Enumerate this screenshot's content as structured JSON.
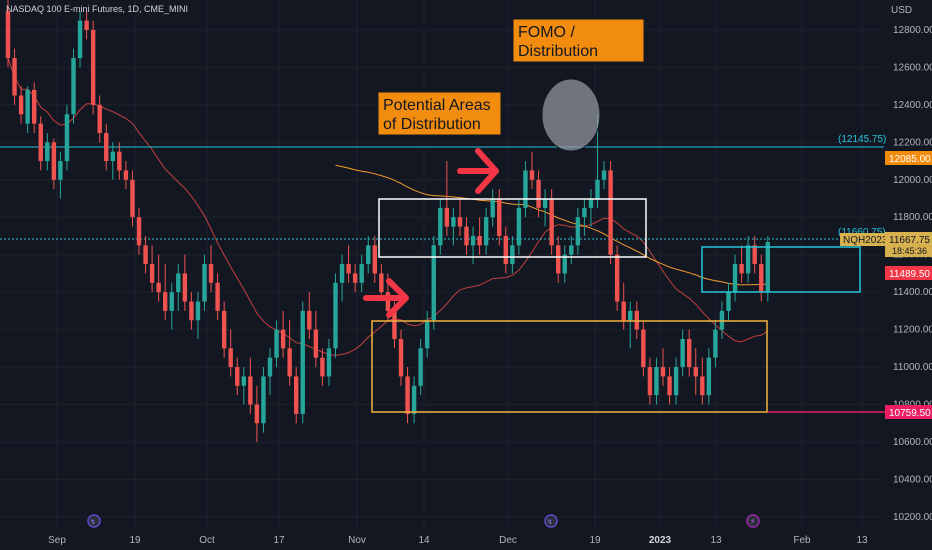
{
  "header": {
    "title": "NASDAQ 100 E-mini Futures, 1D, CME_MINI",
    "currency": "USD"
  },
  "colors": {
    "background": "#131722",
    "up": "#26a69a",
    "down": "#ef5350",
    "ma_red": "#c2403f",
    "ma_orange": "#f59c2f",
    "level": "#26c6da",
    "orange_zone": "#f5b23c",
    "white_zone": "#ffffff",
    "annotation_bg": "#f28c0f",
    "arrow": "#f23645",
    "pink_level": "#e91e63"
  },
  "annotations": {
    "distribution_label": [
      "Potential Areas",
      "of Distribution"
    ],
    "fomo_label": [
      "FOMO /",
      "Distribution"
    ]
  },
  "badges": {
    "level_12145": "(12145.75)",
    "level_11660": "(11660.75)",
    "price_12085": "12085.00",
    "symbol": "NQH2023",
    "last_price": "11667.75",
    "countdown": "18:45:36",
    "price_11489": "11489.50",
    "price_10759": "10759.50"
  },
  "chart_data": {
    "type": "candlestick",
    "title": "NASDAQ 100 E-mini Futures, 1D, CME_MINI",
    "ylabel": "USD",
    "ylim": [
      10130,
      12960
    ],
    "yticks": [
      10200,
      10400,
      10600,
      10800,
      11000,
      11200,
      11400,
      11600,
      11800,
      12000,
      12200,
      12400,
      12600,
      12800
    ],
    "x_labels": [
      "Sep",
      "19",
      "Oct",
      "17",
      "Nov",
      "14",
      "Dec",
      "19",
      "2023",
      "13",
      "Feb",
      "13"
    ],
    "horizontal_levels": [
      12145.75,
      11660.75
    ],
    "price_badges": [
      12085.0,
      11667.75,
      11489.5,
      10759.5
    ],
    "grid": true,
    "candles": [
      [
        12900,
        12960,
        12600,
        12650
      ],
      [
        12650,
        12700,
        12400,
        12450
      ],
      [
        12450,
        12500,
        12300,
        12350
      ],
      [
        12300,
        12500,
        12250,
        12480
      ],
      [
        12480,
        12520,
        12250,
        12300
      ],
      [
        12300,
        12340,
        12050,
        12100
      ],
      [
        12100,
        12250,
        12050,
        12200
      ],
      [
        12200,
        12220,
        11950,
        12000
      ],
      [
        12000,
        12150,
        11900,
        12100
      ],
      [
        12100,
        12400,
        12050,
        12350
      ],
      [
        12350,
        12700,
        12300,
        12650
      ],
      [
        12650,
        12900,
        12600,
        12850
      ],
      [
        12850,
        12900,
        12750,
        12800
      ],
      [
        12800,
        12850,
        12350,
        12400
      ],
      [
        12400,
        12450,
        12200,
        12250
      ],
      [
        12250,
        12300,
        12050,
        12100
      ],
      [
        12100,
        12200,
        12000,
        12150
      ],
      [
        12150,
        12200,
        12000,
        12050
      ],
      [
        12050,
        12100,
        11950,
        12000
      ],
      [
        12000,
        12050,
        11750,
        11800
      ],
      [
        11800,
        11850,
        11600,
        11650
      ],
      [
        11650,
        11700,
        11500,
        11550
      ],
      [
        11550,
        11650,
        11400,
        11450
      ],
      [
        11450,
        11600,
        11350,
        11400
      ],
      [
        11400,
        11550,
        11250,
        11300
      ],
      [
        11300,
        11450,
        11200,
        11400
      ],
      [
        11400,
        11550,
        11300,
        11500
      ],
      [
        11500,
        11600,
        11300,
        11350
      ],
      [
        11350,
        11400,
        11200,
        11250
      ],
      [
        11250,
        11400,
        11150,
        11350
      ],
      [
        11350,
        11600,
        11300,
        11550
      ],
      [
        11550,
        11650,
        11400,
        11450
      ],
      [
        11450,
        11500,
        11250,
        11300
      ],
      [
        11300,
        11350,
        11050,
        11100
      ],
      [
        11100,
        11200,
        10950,
        11000
      ],
      [
        11000,
        11050,
        10850,
        10900
      ],
      [
        10900,
        11000,
        10800,
        10950
      ],
      [
        10950,
        11050,
        10750,
        10800
      ],
      [
        10800,
        10900,
        10600,
        10700
      ],
      [
        10700,
        11000,
        10650,
        10950
      ],
      [
        10950,
        11100,
        10850,
        11050
      ],
      [
        11050,
        11250,
        11000,
        11200
      ],
      [
        11200,
        11300,
        11050,
        11100
      ],
      [
        11100,
        11250,
        10900,
        10950
      ],
      [
        10950,
        11000,
        10700,
        10750
      ],
      [
        10750,
        11350,
        10700,
        11300
      ],
      [
        11300,
        11400,
        11150,
        11200
      ],
      [
        11200,
        11300,
        11000,
        11050
      ],
      [
        11050,
        11100,
        10900,
        10950
      ],
      [
        10950,
        11150,
        10900,
        11100
      ],
      [
        11100,
        11500,
        11050,
        11450
      ],
      [
        11450,
        11600,
        11350,
        11550
      ],
      [
        11550,
        11650,
        11450,
        11500
      ],
      [
        11500,
        11550,
        11400,
        11450
      ],
      [
        11450,
        11600,
        11400,
        11550
      ],
      [
        11550,
        11700,
        11500,
        11650
      ],
      [
        11650,
        11700,
        11450,
        11500
      ],
      [
        11500,
        11550,
        11350,
        11400
      ],
      [
        11400,
        11500,
        11250,
        11300
      ],
      [
        11300,
        11350,
        11100,
        11150
      ],
      [
        11150,
        11200,
        10900,
        10950
      ],
      [
        10950,
        11000,
        10700,
        10750
      ],
      [
        10750,
        10950,
        10700,
        10900
      ],
      [
        10900,
        11150,
        10850,
        11100
      ],
      [
        11100,
        11300,
        11050,
        11250
      ],
      [
        11250,
        11700,
        11200,
        11650
      ],
      [
        11650,
        11900,
        11600,
        11850
      ],
      [
        11850,
        12100,
        11700,
        11750
      ],
      [
        11750,
        11850,
        11650,
        11800
      ],
      [
        11800,
        11900,
        11700,
        11750
      ],
      [
        11750,
        11800,
        11600,
        11650
      ],
      [
        11650,
        11750,
        11550,
        11700
      ],
      [
        11700,
        11800,
        11600,
        11650
      ],
      [
        11650,
        11850,
        11600,
        11800
      ],
      [
        11800,
        11950,
        11750,
        11900
      ],
      [
        11900,
        11950,
        11650,
        11700
      ],
      [
        11700,
        11750,
        11500,
        11550
      ],
      [
        11550,
        11700,
        11500,
        11650
      ],
      [
        11650,
        11900,
        11600,
        11850
      ],
      [
        11850,
        12100,
        11800,
        12050
      ],
      [
        12050,
        12150,
        11950,
        12000
      ],
      [
        12000,
        12050,
        11800,
        11850
      ],
      [
        11850,
        11950,
        11750,
        11900
      ],
      [
        11900,
        11950,
        11600,
        11650
      ],
      [
        11650,
        11700,
        11450,
        11500
      ],
      [
        11500,
        11650,
        11450,
        11600
      ],
      [
        11600,
        11700,
        11550,
        11650
      ],
      [
        11650,
        11850,
        11600,
        11800
      ],
      [
        11800,
        11900,
        11700,
        11850
      ],
      [
        11850,
        11950,
        11750,
        11900
      ],
      [
        11900,
        12350,
        11850,
        12000
      ],
      [
        12000,
        12100,
        11950,
        12050
      ],
      [
        12050,
        12100,
        11550,
        11600
      ],
      [
        11600,
        11650,
        11300,
        11350
      ],
      [
        11350,
        11450,
        11200,
        11250
      ],
      [
        11250,
        11350,
        11100,
        11300
      ],
      [
        11300,
        11350,
        11150,
        11200
      ],
      [
        11200,
        11250,
        10950,
        11000
      ],
      [
        11000,
        11050,
        10800,
        10850
      ],
      [
        10850,
        11050,
        10800,
        11000
      ],
      [
        11000,
        11100,
        10900,
        10950
      ],
      [
        10950,
        11000,
        10800,
        10850
      ],
      [
        10850,
        11050,
        10800,
        11000
      ],
      [
        11000,
        11200,
        10950,
        11150
      ],
      [
        11150,
        11200,
        10950,
        11000
      ],
      [
        11000,
        11100,
        10850,
        10950
      ],
      [
        10950,
        11050,
        10800,
        10850
      ],
      [
        10850,
        11100,
        10800,
        11050
      ],
      [
        11050,
        11250,
        11000,
        11200
      ],
      [
        11200,
        11350,
        11150,
        11300
      ],
      [
        11300,
        11450,
        11250,
        11400
      ],
      [
        11400,
        11600,
        11350,
        11550
      ],
      [
        11550,
        11650,
        11450,
        11500
      ],
      [
        11500,
        11700,
        11450,
        11650
      ],
      [
        11650,
        11700,
        11500,
        11550
      ],
      [
        11550,
        11600,
        11350,
        11400
      ],
      [
        11400,
        11700,
        11350,
        11667.75
      ]
    ]
  }
}
